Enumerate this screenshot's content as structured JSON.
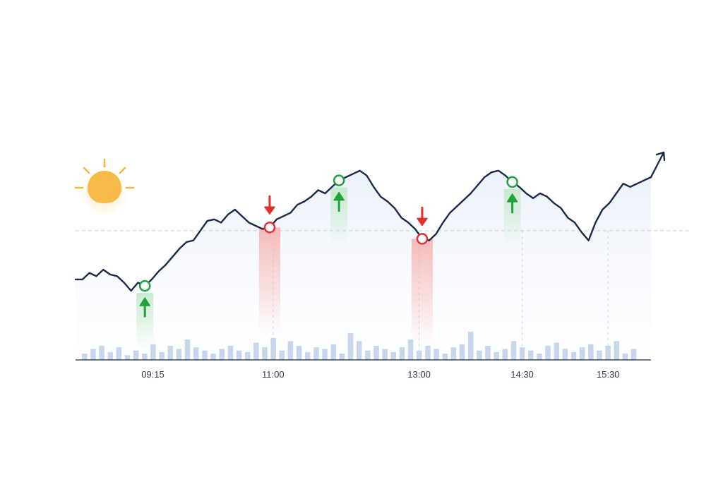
{
  "chart_data": {
    "type": "line",
    "title": "",
    "xlabel": "",
    "ylabel": "",
    "x_ticks": [
      "09:15",
      "11:00",
      "13:00",
      "14:30",
      "15:30"
    ],
    "x_tick_positions": [
      9,
      23,
      40,
      52,
      62
    ],
    "x_range": [
      0,
      67
    ],
    "y_range": [
      0,
      100
    ],
    "reference_line": 57,
    "grid": "vertical dashed at ticks",
    "series": [
      {
        "values": [
          27,
          27,
          31,
          29,
          33,
          30,
          29,
          25,
          20,
          25,
          23,
          27,
          32,
          36,
          41,
          46,
          50,
          51,
          57,
          63,
          64,
          62,
          67,
          70,
          66,
          62,
          60,
          58,
          59,
          64,
          66,
          68,
          73,
          75,
          78,
          82,
          80,
          84,
          88,
          90,
          92,
          94,
          91,
          84,
          78,
          75,
          71,
          65,
          62,
          58,
          52,
          51,
          55,
          62,
          68,
          72,
          76,
          80,
          85,
          90,
          93,
          94,
          91,
          87,
          84,
          80,
          77,
          80,
          78,
          74,
          71,
          65,
          62,
          56,
          51,
          62,
          70,
          74,
          80,
          86,
          84,
          86,
          88,
          90
        ]
      }
    ],
    "volume": [
      4,
      7,
      9,
      5,
      8,
      3,
      6,
      4,
      10,
      5,
      9,
      7,
      13,
      8,
      6,
      4,
      7,
      9,
      6,
      5,
      11,
      8,
      14,
      6,
      12,
      9,
      5,
      8,
      7,
      10,
      4,
      17,
      12,
      6,
      9,
      7,
      5,
      8,
      13,
      6,
      9,
      7,
      4,
      8,
      10,
      18,
      6,
      9,
      5,
      7,
      12,
      8,
      6,
      4,
      9,
      11,
      7,
      5,
      8,
      10,
      6,
      9,
      12,
      4,
      7
    ],
    "signals": [
      {
        "type": "buy",
        "index": 10
      },
      {
        "type": "sell",
        "index": 28
      },
      {
        "type": "buy",
        "index": 38
      },
      {
        "type": "sell",
        "index": 50
      },
      {
        "type": "buy",
        "index": 63
      }
    ],
    "colors": {
      "line": "#1b2a4a",
      "buy": "#1fa23b",
      "sell": "#e0302e",
      "area": "#e9eef8",
      "volume": "#c9d5ec",
      "sun": "#f5b43c",
      "moon": "#8796c4"
    },
    "icons": [
      "sun-icon",
      "moon-icon",
      "up-arrow-icon",
      "down-arrow-icon"
    ]
  }
}
